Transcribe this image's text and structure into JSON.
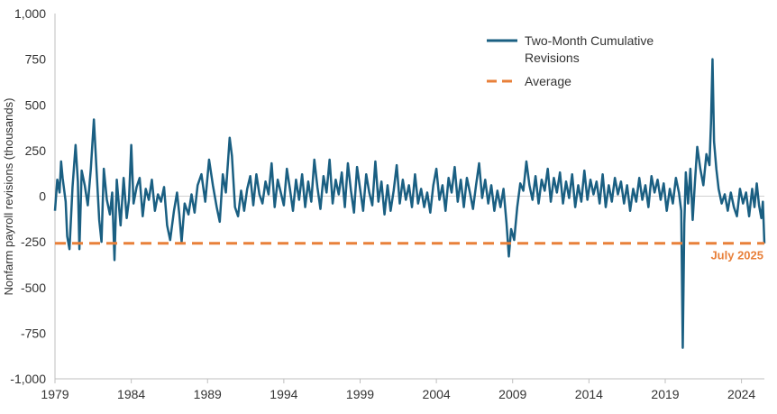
{
  "chart_data": {
    "type": "line",
    "title": "",
    "xlabel": "",
    "ylabel": "Nonfarm payroll revisions (thousands)",
    "ylim": [
      -1000,
      1000
    ],
    "xlim": [
      1979.0,
      2025.5
    ],
    "y_ticks": [
      {
        "value": 1000,
        "label": "1,000"
      },
      {
        "value": 750,
        "label": "750"
      },
      {
        "value": 500,
        "label": "500"
      },
      {
        "value": 250,
        "label": "250"
      },
      {
        "value": 0,
        "label": "0"
      },
      {
        "value": -250,
        "label": "-250"
      },
      {
        "value": -500,
        "label": "-500"
      },
      {
        "value": -750,
        "label": "-750"
      },
      {
        "value": -1000,
        "label": "-1,000"
      }
    ],
    "x_ticks": [
      {
        "value": 1979,
        "label": "1979"
      },
      {
        "value": 1984,
        "label": "1984"
      },
      {
        "value": 1989,
        "label": "1989"
      },
      {
        "value": 1994,
        "label": "1994"
      },
      {
        "value": 1999,
        "label": "1999"
      },
      {
        "value": 2004,
        "label": "2004"
      },
      {
        "value": 2009,
        "label": "2009"
      },
      {
        "value": 2014,
        "label": "2014"
      },
      {
        "value": 2019,
        "label": "2019"
      },
      {
        "value": 2024,
        "label": "2024"
      }
    ],
    "grid": false,
    "legend_position": "top-right",
    "series": [
      {
        "name": "Two-Month Cumulative Revisions",
        "legend_label_lines": [
          "Two-Month Cumulative",
          "Revisions"
        ],
        "color": "#1a5f82",
        "style": "solid",
        "points": [
          [
            1979.0,
            -80
          ],
          [
            1979.15,
            90
          ],
          [
            1979.3,
            20
          ],
          [
            1979.4,
            190
          ],
          [
            1979.5,
            100
          ],
          [
            1979.7,
            -30
          ],
          [
            1979.8,
            -220
          ],
          [
            1979.95,
            -290
          ],
          [
            1980.15,
            50
          ],
          [
            1980.35,
            280
          ],
          [
            1980.5,
            80
          ],
          [
            1980.6,
            -290
          ],
          [
            1980.75,
            140
          ],
          [
            1980.95,
            60
          ],
          [
            1981.15,
            -50
          ],
          [
            1981.35,
            150
          ],
          [
            1981.55,
            420
          ],
          [
            1981.7,
            180
          ],
          [
            1981.9,
            -130
          ],
          [
            1982.05,
            -250
          ],
          [
            1982.2,
            150
          ],
          [
            1982.4,
            -20
          ],
          [
            1982.6,
            -100
          ],
          [
            1982.75,
            20
          ],
          [
            1982.9,
            -350
          ],
          [
            1983.05,
            90
          ],
          [
            1983.3,
            -160
          ],
          [
            1983.5,
            100
          ],
          [
            1983.7,
            -120
          ],
          [
            1983.85,
            -20
          ],
          [
            1984.0,
            280
          ],
          [
            1984.15,
            -40
          ],
          [
            1984.35,
            50
          ],
          [
            1984.55,
            100
          ],
          [
            1984.75,
            -110
          ],
          [
            1984.95,
            40
          ],
          [
            1985.15,
            -20
          ],
          [
            1985.35,
            90
          ],
          [
            1985.55,
            -80
          ],
          [
            1985.75,
            10
          ],
          [
            1985.95,
            -30
          ],
          [
            1986.15,
            50
          ],
          [
            1986.35,
            -160
          ],
          [
            1986.55,
            -240
          ],
          [
            1986.8,
            -80
          ],
          [
            1987.0,
            20
          ],
          [
            1987.15,
            -100
          ],
          [
            1987.3,
            -250
          ],
          [
            1987.5,
            -40
          ],
          [
            1987.75,
            -100
          ],
          [
            1987.95,
            10
          ],
          [
            1988.15,
            -90
          ],
          [
            1988.35,
            60
          ],
          [
            1988.6,
            120
          ],
          [
            1988.85,
            -30
          ],
          [
            1989.1,
            200
          ],
          [
            1989.35,
            60
          ],
          [
            1989.6,
            -60
          ],
          [
            1989.8,
            -140
          ],
          [
            1990.0,
            120
          ],
          [
            1990.2,
            20
          ],
          [
            1990.45,
            320
          ],
          [
            1990.6,
            220
          ],
          [
            1990.8,
            -60
          ],
          [
            1991.0,
            -110
          ],
          [
            1991.2,
            30
          ],
          [
            1991.4,
            -80
          ],
          [
            1991.6,
            40
          ],
          [
            1991.8,
            110
          ],
          [
            1992.0,
            -50
          ],
          [
            1992.2,
            120
          ],
          [
            1992.4,
            10
          ],
          [
            1992.6,
            -40
          ],
          [
            1992.8,
            80
          ],
          [
            1993.0,
            10
          ],
          [
            1993.2,
            180
          ],
          [
            1993.4,
            -60
          ],
          [
            1993.6,
            90
          ],
          [
            1993.8,
            20
          ],
          [
            1994.0,
            -50
          ],
          [
            1994.2,
            150
          ],
          [
            1994.4,
            40
          ],
          [
            1994.6,
            -80
          ],
          [
            1994.8,
            90
          ],
          [
            1995.0,
            -20
          ],
          [
            1995.2,
            120
          ],
          [
            1995.4,
            -60
          ],
          [
            1995.6,
            80
          ],
          [
            1995.8,
            -30
          ],
          [
            1996.0,
            200
          ],
          [
            1996.2,
            50
          ],
          [
            1996.4,
            -70
          ],
          [
            1996.6,
            110
          ],
          [
            1996.8,
            20
          ],
          [
            1997.0,
            200
          ],
          [
            1997.2,
            -40
          ],
          [
            1997.4,
            90
          ],
          [
            1997.6,
            10
          ],
          [
            1997.8,
            130
          ],
          [
            1998.0,
            -60
          ],
          [
            1998.2,
            180
          ],
          [
            1998.4,
            30
          ],
          [
            1998.6,
            -90
          ],
          [
            1998.8,
            160
          ],
          [
            1999.0,
            40
          ],
          [
            1999.2,
            -80
          ],
          [
            1999.4,
            120
          ],
          [
            1999.6,
            20
          ],
          [
            1999.8,
            -50
          ],
          [
            2000.0,
            190
          ],
          [
            2000.2,
            -30
          ],
          [
            2000.4,
            80
          ],
          [
            2000.6,
            -100
          ],
          [
            2000.8,
            60
          ],
          [
            2001.0,
            -80
          ],
          [
            2001.2,
            30
          ],
          [
            2001.4,
            170
          ],
          [
            2001.6,
            -40
          ],
          [
            2001.8,
            90
          ],
          [
            2002.0,
            -20
          ],
          [
            2002.2,
            60
          ],
          [
            2002.4,
            -60
          ],
          [
            2002.6,
            120
          ],
          [
            2002.8,
            -40
          ],
          [
            2003.0,
            40
          ],
          [
            2003.2,
            -60
          ],
          [
            2003.4,
            20
          ],
          [
            2003.6,
            -90
          ],
          [
            2003.8,
            60
          ],
          [
            2004.0,
            150
          ],
          [
            2004.2,
            -20
          ],
          [
            2004.4,
            60
          ],
          [
            2004.6,
            -80
          ],
          [
            2004.8,
            100
          ],
          [
            2005.0,
            20
          ],
          [
            2005.2,
            160
          ],
          [
            2005.4,
            -30
          ],
          [
            2005.6,
            90
          ],
          [
            2005.8,
            -60
          ],
          [
            2006.0,
            100
          ],
          [
            2006.2,
            20
          ],
          [
            2006.4,
            -70
          ],
          [
            2006.6,
            60
          ],
          [
            2006.8,
            180
          ],
          [
            2007.0,
            -10
          ],
          [
            2007.2,
            90
          ],
          [
            2007.4,
            -40
          ],
          [
            2007.6,
            60
          ],
          [
            2007.8,
            -80
          ],
          [
            2008.0,
            30
          ],
          [
            2008.2,
            -60
          ],
          [
            2008.4,
            40
          ],
          [
            2008.6,
            -150
          ],
          [
            2008.75,
            -330
          ],
          [
            2008.9,
            -180
          ],
          [
            2009.1,
            -240
          ],
          [
            2009.3,
            -60
          ],
          [
            2009.5,
            70
          ],
          [
            2009.7,
            30
          ],
          [
            2009.9,
            190
          ],
          [
            2010.1,
            60
          ],
          [
            2010.3,
            -20
          ],
          [
            2010.5,
            110
          ],
          [
            2010.7,
            -40
          ],
          [
            2010.9,
            90
          ],
          [
            2011.1,
            30
          ],
          [
            2011.3,
            150
          ],
          [
            2011.5,
            -30
          ],
          [
            2011.7,
            100
          ],
          [
            2011.9,
            20
          ],
          [
            2012.1,
            130
          ],
          [
            2012.3,
            -40
          ],
          [
            2012.5,
            80
          ],
          [
            2012.7,
            -10
          ],
          [
            2012.9,
            120
          ],
          [
            2013.1,
            -60
          ],
          [
            2013.3,
            60
          ],
          [
            2013.5,
            -30
          ],
          [
            2013.7,
            140
          ],
          [
            2013.9,
            -20
          ],
          [
            2014.1,
            90
          ],
          [
            2014.3,
            10
          ],
          [
            2014.5,
            80
          ],
          [
            2014.7,
            -40
          ],
          [
            2014.9,
            120
          ],
          [
            2015.1,
            -60
          ],
          [
            2015.3,
            60
          ],
          [
            2015.5,
            -30
          ],
          [
            2015.7,
            100
          ],
          [
            2015.9,
            10
          ],
          [
            2016.1,
            80
          ],
          [
            2016.3,
            -40
          ],
          [
            2016.5,
            60
          ],
          [
            2016.7,
            -80
          ],
          [
            2016.9,
            40
          ],
          [
            2017.1,
            -30
          ],
          [
            2017.3,
            100
          ],
          [
            2017.5,
            -20
          ],
          [
            2017.7,
            60
          ],
          [
            2017.9,
            -60
          ],
          [
            2018.1,
            110
          ],
          [
            2018.3,
            20
          ],
          [
            2018.5,
            90
          ],
          [
            2018.7,
            -20
          ],
          [
            2018.9,
            70
          ],
          [
            2019.1,
            -80
          ],
          [
            2019.3,
            40
          ],
          [
            2019.5,
            -40
          ],
          [
            2019.7,
            100
          ],
          [
            2019.9,
            20
          ],
          [
            2020.05,
            -80
          ],
          [
            2020.15,
            -830
          ],
          [
            2020.25,
            -150
          ],
          [
            2020.35,
            130
          ],
          [
            2020.5,
            -40
          ],
          [
            2020.65,
            150
          ],
          [
            2020.8,
            -130
          ],
          [
            2020.95,
            80
          ],
          [
            2021.1,
            270
          ],
          [
            2021.3,
            150
          ],
          [
            2021.5,
            60
          ],
          [
            2021.7,
            230
          ],
          [
            2021.9,
            170
          ],
          [
            2022.0,
            400
          ],
          [
            2022.1,
            750
          ],
          [
            2022.2,
            300
          ],
          [
            2022.35,
            150
          ],
          [
            2022.5,
            40
          ],
          [
            2022.7,
            -40
          ],
          [
            2022.9,
            10
          ],
          [
            2023.1,
            -80
          ],
          [
            2023.3,
            20
          ],
          [
            2023.5,
            -60
          ],
          [
            2023.7,
            -110
          ],
          [
            2023.9,
            40
          ],
          [
            2024.1,
            -40
          ],
          [
            2024.3,
            20
          ],
          [
            2024.5,
            -110
          ],
          [
            2024.7,
            40
          ],
          [
            2024.85,
            -60
          ],
          [
            2025.0,
            70
          ],
          [
            2025.15,
            -50
          ],
          [
            2025.3,
            -120
          ],
          [
            2025.4,
            -30
          ],
          [
            2025.5,
            -258
          ]
        ]
      },
      {
        "name": "Average",
        "legend_label_lines": [
          "Average"
        ],
        "color": "#e8803a",
        "style": "dashed",
        "points": [
          [
            1979.0,
            -258
          ],
          [
            2025.5,
            -258
          ]
        ]
      }
    ],
    "annotations": [
      {
        "text": "July 2025",
        "x": 2025.5,
        "y": -258,
        "color": "#e8803a"
      }
    ]
  }
}
